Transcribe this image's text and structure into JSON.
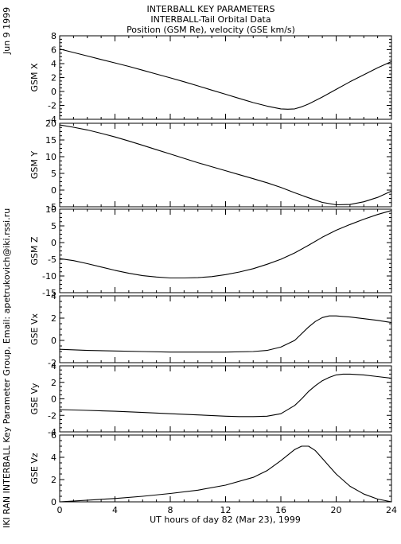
{
  "header": {
    "title_line1": "INTERBALL KEY PARAMETERS",
    "title_line2": "INTERBALL-Tail Orbital Data",
    "title_line3": "Position (GSM Re), velocity (GSE km/s)"
  },
  "side": {
    "date": "Jun  9 1999",
    "credit": "IKI RAN INTERBALL Key Parameter Group, Email: apetrukovich@iki.rssi.ru"
  },
  "chart_data": {
    "type": "line",
    "xlabel": "UT hours of day  82 (Mar 23), 1999",
    "xlim": [
      0,
      24
    ],
    "xticks": [
      0,
      4,
      8,
      12,
      16,
      20,
      24
    ],
    "line_color": "#000000",
    "panels": [
      {
        "ylabel": "GSM X",
        "ylim": [
          -4,
          8
        ],
        "yticks": [
          -4,
          -2,
          0,
          2,
          4,
          6,
          8
        ],
        "x": [
          0,
          1,
          2,
          3,
          4,
          5,
          6,
          7,
          8,
          9,
          10,
          11,
          12,
          13,
          14,
          15,
          16,
          16.5,
          17,
          17.5,
          18,
          19,
          20,
          21,
          22,
          23,
          24
        ],
        "y": [
          6.1,
          5.6,
          5.1,
          4.6,
          4.1,
          3.6,
          3.05,
          2.5,
          1.95,
          1.4,
          0.8,
          0.2,
          -0.4,
          -1.0,
          -1.6,
          -2.1,
          -2.5,
          -2.55,
          -2.5,
          -2.2,
          -1.8,
          -0.8,
          0.3,
          1.4,
          2.4,
          3.4,
          4.3
        ]
      },
      {
        "ylabel": "GSM Y",
        "ylim": [
          -5,
          20
        ],
        "yticks": [
          -5,
          0,
          5,
          10,
          15,
          20
        ],
        "x": [
          0,
          1,
          2,
          3,
          4,
          5,
          6,
          7,
          8,
          9,
          10,
          11,
          12,
          13,
          14,
          15,
          16,
          17,
          18,
          19,
          20,
          21,
          22,
          23,
          24
        ],
        "y": [
          19.5,
          18.8,
          18.0,
          17.0,
          15.9,
          14.7,
          13.4,
          12.1,
          10.8,
          9.5,
          8.2,
          7.0,
          5.8,
          4.6,
          3.4,
          2.2,
          0.8,
          -0.8,
          -2.3,
          -3.7,
          -4.4,
          -4.3,
          -3.5,
          -2.2,
          -0.3
        ]
      },
      {
        "ylabel": "GSM Z",
        "ylim": [
          -15,
          10
        ],
        "yticks": [
          -15,
          -10,
          -5,
          0,
          5,
          10
        ],
        "x": [
          0,
          1,
          2,
          3,
          4,
          5,
          6,
          7,
          8,
          9,
          10,
          11,
          12,
          13,
          14,
          15,
          16,
          17,
          18,
          19,
          20,
          21,
          22,
          23,
          24
        ],
        "y": [
          -4.8,
          -5.4,
          -6.3,
          -7.3,
          -8.3,
          -9.2,
          -9.9,
          -10.3,
          -10.6,
          -10.6,
          -10.5,
          -10.2,
          -9.6,
          -8.8,
          -7.8,
          -6.5,
          -5.0,
          -3.1,
          -0.8,
          1.6,
          3.7,
          5.4,
          7.0,
          8.4,
          9.6
        ]
      },
      {
        "ylabel": "GSE Vx",
        "ylim": [
          -2,
          4
        ],
        "yticks": [
          -2,
          0,
          2,
          4
        ],
        "x": [
          0,
          2,
          4,
          6,
          8,
          10,
          12,
          14,
          15,
          16,
          17,
          17.5,
          18,
          18.5,
          19,
          19.5,
          20,
          20.5,
          21,
          22,
          23,
          24
        ],
        "y": [
          -0.8,
          -0.9,
          -0.95,
          -1.0,
          -1.05,
          -1.05,
          -1.05,
          -1.0,
          -0.9,
          -0.6,
          0.0,
          0.6,
          1.2,
          1.7,
          2.05,
          2.2,
          2.2,
          2.15,
          2.1,
          1.95,
          1.8,
          1.6
        ]
      },
      {
        "ylabel": "GSE Vy",
        "ylim": [
          -4,
          4
        ],
        "yticks": [
          -4,
          -2,
          0,
          2,
          4
        ],
        "x": [
          0,
          2,
          4,
          6,
          8,
          10,
          12,
          13,
          14,
          15,
          16,
          17,
          17.5,
          18,
          18.5,
          19,
          19.5,
          20,
          20.5,
          21,
          22,
          23,
          24
        ],
        "y": [
          -1.3,
          -1.4,
          -1.5,
          -1.65,
          -1.8,
          -1.95,
          -2.1,
          -2.15,
          -2.15,
          -2.1,
          -1.8,
          -0.8,
          0.0,
          0.9,
          1.6,
          2.2,
          2.6,
          2.9,
          3.0,
          3.0,
          2.9,
          2.7,
          2.5
        ]
      },
      {
        "ylabel": "GSE Vz",
        "ylim": [
          0,
          6
        ],
        "yticks": [
          0,
          2,
          4,
          6
        ],
        "x": [
          0,
          2,
          4,
          6,
          8,
          10,
          12,
          14,
          15,
          16,
          16.5,
          17,
          17.5,
          18,
          18.5,
          19,
          19.5,
          20,
          21,
          22,
          23,
          24
        ],
        "y": [
          0.0,
          0.15,
          0.3,
          0.5,
          0.75,
          1.05,
          1.5,
          2.2,
          2.8,
          3.7,
          4.2,
          4.7,
          5.0,
          5.0,
          4.6,
          3.9,
          3.2,
          2.5,
          1.4,
          0.7,
          0.25,
          0.0
        ]
      }
    ]
  }
}
